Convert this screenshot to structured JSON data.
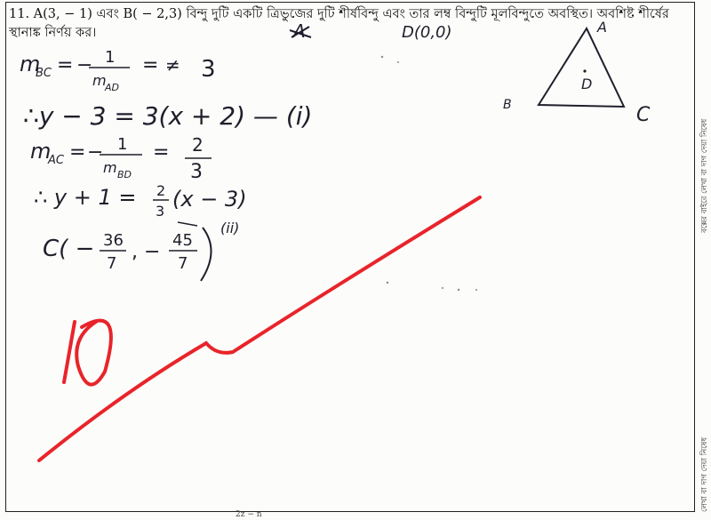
{
  "question": {
    "number": "11.",
    "text": "A(3, − 1) এবং B( − 2,3) বিন্দু দুটি একটি ত্রিভুজের দুটি শীর্ষবিন্দু এবং তার লম্ব বিন্দুটি মূলবিন্দুতে অবস্থিত। অবশিষ্ট শীর্ষের স্থানাঙ্ক নির্ণয় কর।"
  },
  "handwriting": {
    "line1": "m_BC = −1/m_AD = 3",
    "line2": "∴ y − 3 = 3(x + 2) —(i)",
    "line3": "m_AC = −1/m_BD = 2/3",
    "line4": "∴ y + 1 = 2/3 (x − 3)",
    "line5": "C( −36/7 , −45/7 ) (ii)",
    "origin_label": "D(0,0)",
    "vertex_a": "A",
    "vertex_b": "B",
    "vertex_c": "C",
    "vertex_d": "D"
  },
  "grader": {
    "score": "0",
    "mark_color": "#e8242a"
  },
  "margin_notes": {
    "right_1": "বক্সের বাইরে লেখা বা দাগ দেয়া নিষেধ",
    "right_2": "লেখা বা দাগ দেয়া নিষেধ"
  },
  "footer_fragment": "2z − n",
  "colors": {
    "ink": "#1f1f2b",
    "red": "#e8242a"
  }
}
